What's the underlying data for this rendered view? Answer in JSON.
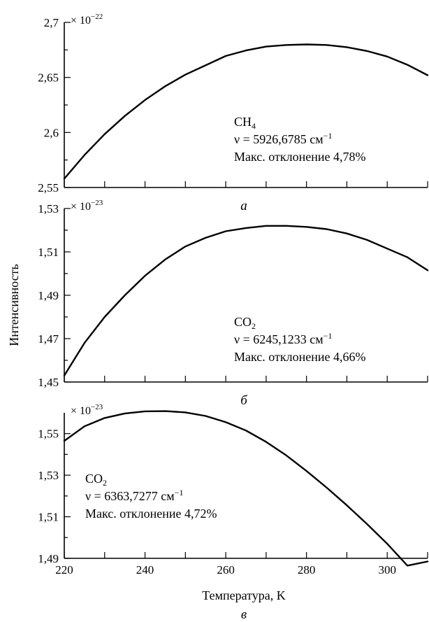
{
  "figure": {
    "ylabel": "Интенсивность",
    "xlabel": "Температура, K"
  },
  "chart_data": [
    {
      "type": "line",
      "panel_label": "a",
      "scale_prefix": "× 10",
      "scale_exponent": "−22",
      "xlim": [
        220,
        310
      ],
      "ylim": [
        2.55,
        2.7
      ],
      "yticks": [
        2.55,
        2.6,
        2.65,
        2.7
      ],
      "ytick_labels": [
        "2,55",
        "2,6",
        "2,65",
        "2,7"
      ],
      "xticks": [
        220,
        230,
        240,
        250,
        260,
        270,
        280,
        290,
        300,
        310
      ],
      "xtick_labels": [],
      "annotation": {
        "molecule_base": "CH",
        "molecule_sub": "4",
        "nu_text": "ν = 5926,6785 см",
        "nu_sup": "−1",
        "deviation": "Макс. отклонение  4,78%"
      },
      "series": [
        {
          "x": [
            220,
            225,
            230,
            235,
            240,
            245,
            250,
            255,
            260,
            265,
            270,
            275,
            280,
            285,
            290,
            295,
            300,
            305,
            310
          ],
          "values": [
            2.558,
            2.5795,
            2.5985,
            2.615,
            2.6295,
            2.642,
            2.6525,
            2.661,
            2.6695,
            2.6745,
            2.678,
            2.6795,
            2.68,
            2.6795,
            2.6775,
            2.674,
            2.669,
            2.6615,
            2.652
          ]
        }
      ]
    },
    {
      "type": "line",
      "panel_label": "б",
      "scale_prefix": "× 10",
      "scale_exponent": "−23",
      "xlim": [
        220,
        310
      ],
      "ylim": [
        1.45,
        1.53
      ],
      "yticks": [
        1.45,
        1.47,
        1.49,
        1.51,
        1.53
      ],
      "ytick_labels": [
        "1,45",
        "1,47",
        "1,49",
        "1,51",
        "1,53"
      ],
      "xticks": [
        220,
        230,
        240,
        250,
        260,
        270,
        280,
        290,
        300,
        310
      ],
      "xtick_labels": [],
      "annotation": {
        "molecule_base": "CO",
        "molecule_sub": "2",
        "nu_text": "ν = 6245,1233 см",
        "nu_sup": "−1",
        "deviation": "Макс. отклонение  4,66%"
      },
      "series": [
        {
          "x": [
            220,
            225,
            230,
            235,
            240,
            245,
            250,
            255,
            260,
            265,
            270,
            275,
            280,
            285,
            290,
            295,
            300,
            305,
            310
          ],
          "values": [
            1.453,
            1.468,
            1.48,
            1.49,
            1.499,
            1.5065,
            1.5125,
            1.5165,
            1.5195,
            1.521,
            1.522,
            1.522,
            1.5215,
            1.5205,
            1.5185,
            1.5155,
            1.5115,
            1.5075,
            1.5015
          ]
        }
      ]
    },
    {
      "type": "line",
      "panel_label": "в",
      "scale_prefix": "× 10",
      "scale_exponent": "−23",
      "xlim": [
        220,
        310
      ],
      "ylim": [
        1.49,
        1.56
      ],
      "yticks": [
        1.49,
        1.51,
        1.53,
        1.55
      ],
      "ytick_labels": [
        "1,49",
        "1,51",
        "1,53",
        "1,55"
      ],
      "xticks": [
        220,
        230,
        240,
        250,
        260,
        270,
        280,
        290,
        300,
        310
      ],
      "xtick_labels": [
        "220",
        "240",
        "260",
        "280",
        "300"
      ],
      "annotation": {
        "molecule_base": "CO",
        "molecule_sub": "2",
        "nu_text": "ν = 6363,7277 см",
        "nu_sup": "−1",
        "deviation": "Макс. отклонение  4,72%"
      },
      "series": [
        {
          "x": [
            220,
            225,
            230,
            235,
            240,
            245,
            250,
            255,
            260,
            265,
            270,
            275,
            280,
            285,
            290,
            295,
            300,
            305,
            310
          ],
          "values": [
            1.5465,
            1.5535,
            1.5575,
            1.5597,
            1.5607,
            1.5608,
            1.5602,
            1.5585,
            1.5555,
            1.5515,
            1.546,
            1.5395,
            1.532,
            1.524,
            1.5155,
            1.5065,
            1.497,
            1.4865,
            1.4885
          ]
        }
      ]
    }
  ]
}
